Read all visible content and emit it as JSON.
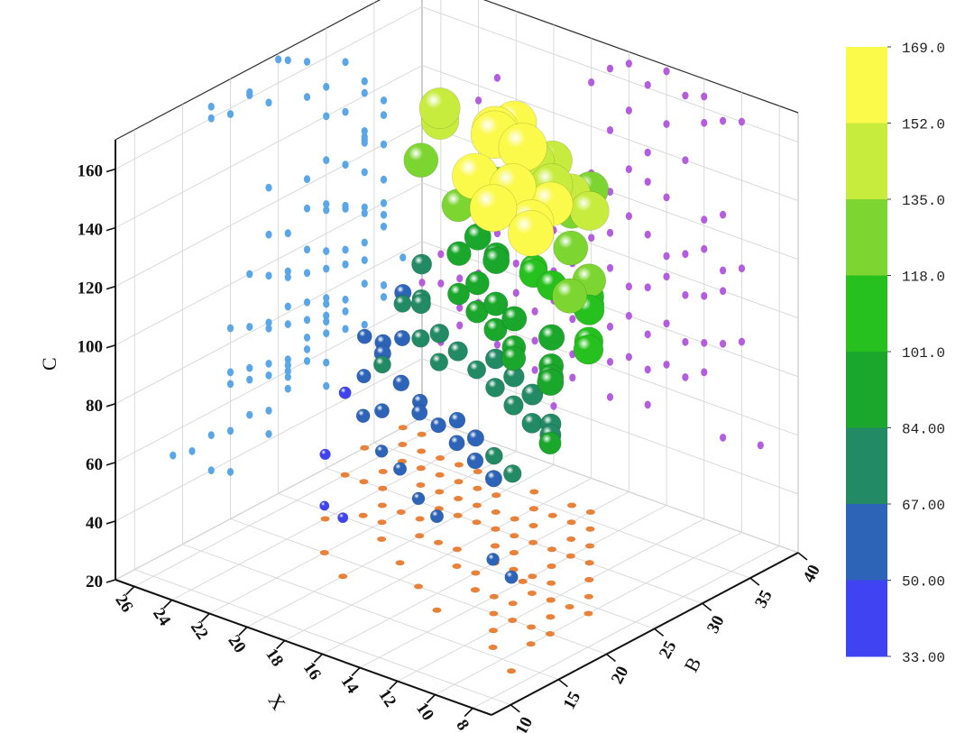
{
  "chart_data": {
    "type": "scatter",
    "subtype": "3d-bubble",
    "title": "",
    "xlabel": "X",
    "ylabel": "B",
    "zlabel": "C",
    "xlim": [
      7,
      27
    ],
    "ylim": [
      8,
      40
    ],
    "zlim": [
      20,
      170
    ],
    "x_ticks": [
      "8",
      "10",
      "12",
      "14",
      "16",
      "18",
      "20",
      "22",
      "24",
      "26"
    ],
    "y_ticks": [
      "10",
      "15",
      "20",
      "25",
      "30",
      "35",
      "40"
    ],
    "z_ticks": [
      "20",
      "40",
      "60",
      "80",
      "100",
      "120",
      "140",
      "160"
    ],
    "grid": true,
    "projections": {
      "xz_wall_color": "#b45ede",
      "yz_wall_color": "#5aa6e6",
      "floor_color": "#e8813a"
    },
    "colorbar": {
      "position": "right",
      "levels": [
        "169.0",
        "152.0",
        "135.0",
        "118.0",
        "101.0",
        "84.00",
        "67.00",
        "50.00",
        "33.00"
      ],
      "colors": [
        "#fbf94a",
        "#c8ec3e",
        "#7cd530",
        "#27c11f",
        "#1aa72b",
        "#238a66",
        "#2d64b8",
        "#3f43f2"
      ]
    },
    "series": [
      {
        "points": [
          [
            10,
            18,
            160
          ],
          [
            11,
            20,
            158
          ],
          [
            12,
            18,
            164
          ],
          [
            13,
            22,
            162
          ],
          [
            14,
            25,
            168
          ],
          [
            15,
            22,
            161
          ],
          [
            12,
            24,
            155
          ],
          [
            16,
            26,
            166
          ],
          [
            17,
            28,
            162
          ],
          [
            14,
            28,
            150
          ],
          [
            16,
            30,
            150
          ],
          [
            18,
            32,
            155
          ],
          [
            13,
            30,
            140
          ],
          [
            15,
            32,
            138
          ],
          [
            17,
            34,
            141
          ],
          [
            11,
            24,
            126
          ],
          [
            12,
            28,
            122
          ],
          [
            14,
            30,
            125
          ],
          [
            15,
            34,
            128
          ],
          [
            16,
            36,
            130
          ],
          [
            17,
            36,
            120
          ],
          [
            18,
            34,
            124
          ],
          [
            20,
            34,
            126
          ],
          [
            21,
            32,
            120
          ],
          [
            23,
            34,
            145
          ],
          [
            24,
            36,
            135
          ],
          [
            24,
            34,
            125
          ],
          [
            10,
            24,
            110
          ],
          [
            11,
            26,
            107
          ],
          [
            12,
            28,
            112
          ],
          [
            13,
            30,
            108
          ],
          [
            14,
            32,
            105
          ],
          [
            15,
            30,
            110
          ],
          [
            16,
            34,
            114
          ],
          [
            17,
            32,
            106
          ],
          [
            18,
            34,
            102
          ],
          [
            19,
            36,
            108
          ],
          [
            20,
            34,
            100
          ],
          [
            21,
            36,
            96
          ],
          [
            11,
            22,
            100
          ],
          [
            12,
            24,
            96
          ],
          [
            13,
            26,
            94
          ],
          [
            14,
            28,
            98
          ],
          [
            15,
            26,
            92
          ],
          [
            16,
            28,
            90
          ],
          [
            17,
            30,
            94
          ],
          [
            18,
            30,
            88
          ],
          [
            19,
            32,
            91
          ],
          [
            20,
            32,
            86
          ],
          [
            21,
            34,
            90
          ],
          [
            22,
            34,
            84
          ],
          [
            22,
            36,
            100
          ],
          [
            23,
            36,
            92
          ],
          [
            10,
            20,
            85
          ],
          [
            11,
            22,
            82
          ],
          [
            12,
            24,
            80
          ],
          [
            13,
            24,
            78
          ],
          [
            14,
            26,
            82
          ],
          [
            15,
            26,
            76
          ],
          [
            16,
            28,
            80
          ],
          [
            17,
            28,
            74
          ],
          [
            18,
            30,
            78
          ],
          [
            19,
            30,
            72
          ],
          [
            20,
            30,
            76
          ],
          [
            21,
            30,
            70
          ],
          [
            22,
            32,
            74
          ],
          [
            23,
            32,
            70
          ],
          [
            24,
            34,
            76
          ],
          [
            25,
            36,
            72
          ],
          [
            26,
            38,
            78
          ],
          [
            26,
            36,
            68
          ],
          [
            24,
            30,
            66
          ],
          [
            23,
            28,
            68
          ],
          [
            25,
            32,
            64
          ],
          [
            27,
            38,
            66
          ],
          [
            22,
            28,
            64
          ],
          [
            12,
            20,
            70
          ],
          [
            13,
            20,
            66
          ],
          [
            14,
            22,
            68
          ],
          [
            15,
            22,
            64
          ],
          [
            16,
            24,
            66
          ],
          [
            17,
            24,
            62
          ],
          [
            18,
            26,
            64
          ],
          [
            19,
            26,
            60
          ],
          [
            20,
            26,
            62
          ],
          [
            21,
            28,
            60
          ],
          [
            22,
            26,
            58
          ],
          [
            9,
            14,
            52
          ],
          [
            11,
            16,
            50
          ],
          [
            15,
            18,
            52
          ],
          [
            17,
            20,
            50
          ],
          [
            19,
            22,
            52
          ],
          [
            21,
            24,
            50
          ],
          [
            23,
            26,
            54
          ],
          [
            25,
            30,
            56
          ],
          [
            27,
            34,
            58
          ],
          [
            25,
            34,
            62
          ],
          [
            20,
            18,
            40
          ],
          [
            22,
            20,
            36
          ],
          [
            24,
            24,
            42
          ],
          [
            26,
            30,
            48
          ]
        ]
      }
    ]
  }
}
